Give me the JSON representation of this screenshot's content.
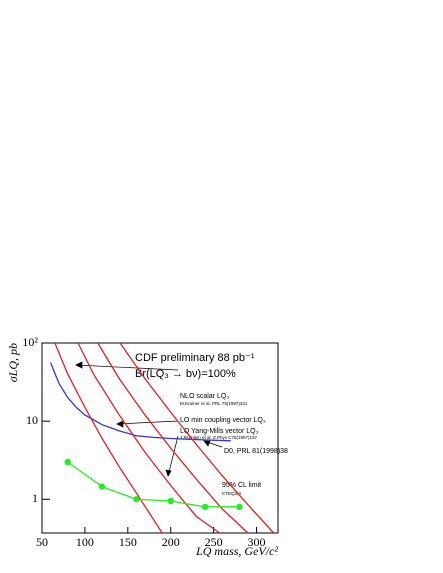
{
  "chart_data": {
    "type": "line",
    "log_y": true,
    "x_label": "LQ mass, GeV/c²",
    "y_label": "σLQ, pb",
    "xlim": [
      50,
      325
    ],
    "xticks": [
      50,
      100,
      150,
      200,
      250,
      300
    ],
    "ylim": [
      0.37,
      100
    ],
    "yticks": [
      1,
      10,
      {
        "value": 100,
        "label": "10²"
      }
    ],
    "annotations": [
      "CDF preliminary 88 pb⁻¹",
      "Br(LQ₃ → bν)=100%",
      "NLO scalar LQ₃",
      "M.Kramer et al. PRL 79(1997)341",
      "LO min coupling vector LQ₃",
      "LO Yang-Mills vector LQ₃",
      "J.Blumlein et al. Z.Phys C76(1997)137",
      "D0, PRL 81(1998)38",
      "95% CL limit",
      "CTEQ3M"
    ],
    "series": [
      {
        "color": "#3333dd",
        "markers": false,
        "x": [
          60,
          70,
          80,
          90,
          100,
          120,
          140,
          160,
          180,
          200,
          230,
          270
        ],
        "values": [
          56,
          30,
          20,
          15,
          12,
          9,
          7.5,
          6.5,
          6.2,
          6,
          5.8,
          5.6
        ]
      },
      {
        "color": "#dd2222",
        "markers": false,
        "x": [
          65,
          80,
          100,
          120,
          140,
          160,
          180,
          190
        ],
        "values": [
          100,
          40,
          15,
          6,
          2.6,
          1.2,
          0.55,
          0.37
        ]
      },
      {
        "color": "#dd2222",
        "markers": false,
        "x": [
          92,
          110,
          140,
          170,
          200,
          230,
          257
        ],
        "values": [
          100,
          40,
          12,
          4,
          1.5,
          0.6,
          0.37
        ]
      },
      {
        "color": "#dd2222",
        "markers": false,
        "x": [
          115,
          140,
          170,
          200,
          230,
          260,
          290
        ],
        "values": [
          100,
          35,
          12,
          4.5,
          1.8,
          0.75,
          0.37
        ]
      },
      {
        "color": "#dd2222",
        "markers": false,
        "x": [
          141,
          170,
          200,
          230,
          260,
          290,
          320
        ],
        "values": [
          100,
          35,
          13,
          5,
          2,
          0.85,
          0.37
        ]
      },
      {
        "color": "#22ee22",
        "markers": true,
        "x": [
          80,
          120,
          160,
          200,
          240,
          280
        ],
        "values": [
          3,
          1.45,
          1.0,
          0.95,
          0.8,
          0.8
        ]
      }
    ]
  }
}
